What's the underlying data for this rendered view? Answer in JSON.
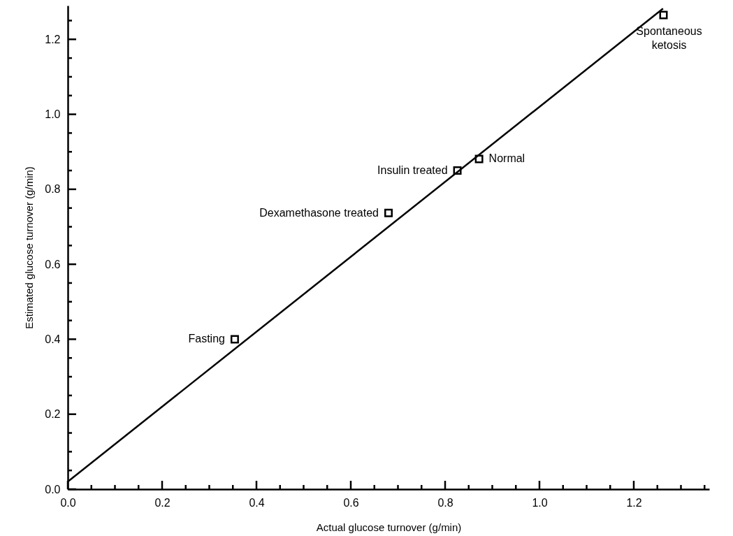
{
  "chart_data": {
    "type": "scatter",
    "xlabel": "Actual glucose turnover (g/min)",
    "ylabel": "Estimated glucose turnover (g/min)",
    "series": [
      {
        "color": "#000000",
        "x": [
          0.354,
          0.68,
          0.826,
          0.872,
          1.263
        ],
        "values": [
          0.4,
          0.737,
          0.85,
          0.881,
          1.265
        ],
        "marker": "square"
      },
      {
        "type": "line",
        "color": "#000000",
        "x": [
          0,
          1.262
        ],
        "values": [
          0.02,
          1.282
        ],
        "marker": "none",
        "line_style": "solid"
      }
    ],
    "annotations": [
      {
        "text": "Fasting",
        "x": 0.354,
        "y": 0.4
      },
      {
        "text": "Dexamethasone treated",
        "x": 0.68,
        "y": 0.737
      },
      {
        "text": "Insulin treated",
        "x": 0.826,
        "y": 0.85
      },
      {
        "text": "Normal",
        "x": 0.872,
        "y": 0.881
      },
      {
        "text": "Spontaneous\nketosis",
        "x": 1.263,
        "y": 1.265
      }
    ],
    "xlim": [
      0,
      1.36
    ],
    "ylim": [
      0,
      1.29
    ],
    "xticks": [
      {
        "value": 0,
        "label": "0.0"
      },
      {
        "value": 0.05,
        "label": null
      },
      {
        "value": 0.1,
        "label": null
      },
      {
        "value": 0.15,
        "label": null
      },
      {
        "value": 0.2,
        "label": "0.2"
      },
      {
        "value": 0.25,
        "label": null
      },
      {
        "value": 0.3,
        "label": null
      },
      {
        "value": 0.35,
        "label": null
      },
      {
        "value": 0.4,
        "label": "0.4"
      },
      {
        "value": 0.45,
        "label": null
      },
      {
        "value": 0.5,
        "label": null
      },
      {
        "value": 0.55,
        "label": null
      },
      {
        "value": 0.6,
        "label": "0.6"
      },
      {
        "value": 0.65,
        "label": null
      },
      {
        "value": 0.7,
        "label": null
      },
      {
        "value": 0.75,
        "label": null
      },
      {
        "value": 0.8,
        "label": "0.8"
      },
      {
        "value": 0.85,
        "label": null
      },
      {
        "value": 0.9,
        "label": null
      },
      {
        "value": 0.95,
        "label": null
      },
      {
        "value": 1.0,
        "label": "1.0"
      },
      {
        "value": 1.05,
        "label": null
      },
      {
        "value": 1.1,
        "label": null
      },
      {
        "value": 1.15,
        "label": null
      },
      {
        "value": 1.2,
        "label": "1.2"
      },
      {
        "value": 1.25,
        "label": null
      },
      {
        "value": 1.3,
        "label": null
      },
      {
        "value": 1.35,
        "label": null
      }
    ],
    "yticks": [
      {
        "value": 0,
        "label": "0.0"
      },
      {
        "value": 0.05,
        "label": null
      },
      {
        "value": 0.1,
        "label": null
      },
      {
        "value": 0.15,
        "label": null
      },
      {
        "value": 0.2,
        "label": "0.2"
      },
      {
        "value": 0.25,
        "label": null
      },
      {
        "value": 0.3,
        "label": null
      },
      {
        "value": 0.35,
        "label": null
      },
      {
        "value": 0.4,
        "label": "0.4"
      },
      {
        "value": 0.45,
        "label": null
      },
      {
        "value": 0.5,
        "label": null
      },
      {
        "value": 0.55,
        "label": null
      },
      {
        "value": 0.6,
        "label": "0.6"
      },
      {
        "value": 0.65,
        "label": null
      },
      {
        "value": 0.7,
        "label": null
      },
      {
        "value": 0.75,
        "label": null
      },
      {
        "value": 0.8,
        "label": "0.8"
      },
      {
        "value": 0.85,
        "label": null
      },
      {
        "value": 0.9,
        "label": null
      },
      {
        "value": 0.95,
        "label": null
      },
      {
        "value": 1.0,
        "label": "1.0"
      },
      {
        "value": 1.05,
        "label": null
      },
      {
        "value": 1.1,
        "label": null
      },
      {
        "value": 1.15,
        "label": null
      },
      {
        "value": 1.2,
        "label": "1.2"
      },
      {
        "value": 1.25,
        "label": null
      }
    ],
    "grid": false
  }
}
